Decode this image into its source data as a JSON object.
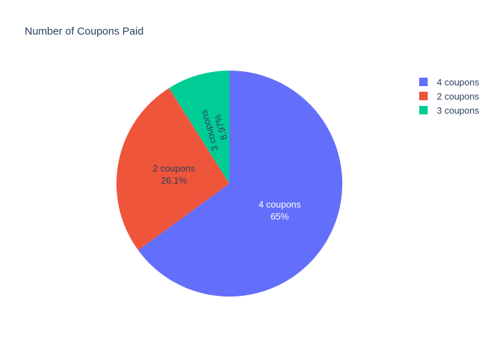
{
  "chart_data": {
    "type": "pie",
    "title": "Number of Coupons Paid",
    "labels": [
      "4 coupons",
      "2 coupons",
      "3 coupons"
    ],
    "values": [
      65,
      26.1,
      8.97
    ],
    "percent_labels": [
      "65%",
      "26.1%",
      "8.97%"
    ],
    "colors": [
      "#636efa",
      "#ef553b",
      "#00cc96"
    ],
    "label_colors": [
      "#ffffff",
      "#2a3f5f",
      "#2a3f5f"
    ],
    "legend": {
      "placement": "top-right",
      "entries": [
        "4 coupons",
        "2 coupons",
        "3 coupons"
      ]
    }
  }
}
